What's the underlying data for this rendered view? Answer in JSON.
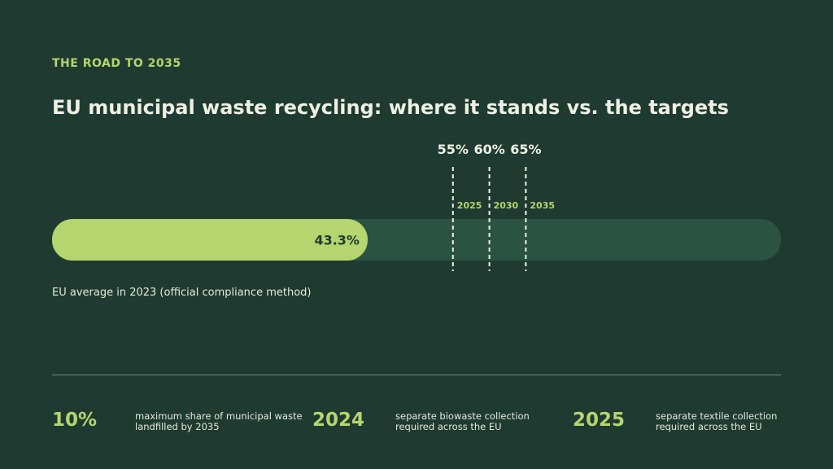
{
  "eyebrow": "THE ROAD TO 2035",
  "title": "EU municipal waste recycling: where it stands vs. the targets",
  "caption": "EU average in 2023 (official compliance method)",
  "colors": {
    "background": "#1f3b31",
    "track": "#2b5343",
    "bar": "#b5d56e",
    "accent": "#b5d56e",
    "text": "#eef0e4",
    "bar_label": "#1f3b31"
  },
  "chart_data": {
    "type": "bar",
    "orientation": "horizontal",
    "xlim": [
      0,
      100
    ],
    "value": 43.3,
    "value_label": "43.3%",
    "targets": [
      {
        "value": 55,
        "label": "55%",
        "year": "2025"
      },
      {
        "value": 60,
        "label": "60%",
        "year": "2030"
      },
      {
        "value": 65,
        "label": "65%",
        "year": "2035"
      }
    ]
  },
  "stats": [
    {
      "number": "10%",
      "desc_lines": [
        "maximum share of municipal waste",
        "landfilled by 2035"
      ]
    },
    {
      "number": "2024",
      "desc_lines": [
        "separate biowaste collection",
        "required across the EU"
      ]
    },
    {
      "number": "2025",
      "desc_lines": [
        "separate textile collection",
        "required across the EU"
      ]
    }
  ]
}
